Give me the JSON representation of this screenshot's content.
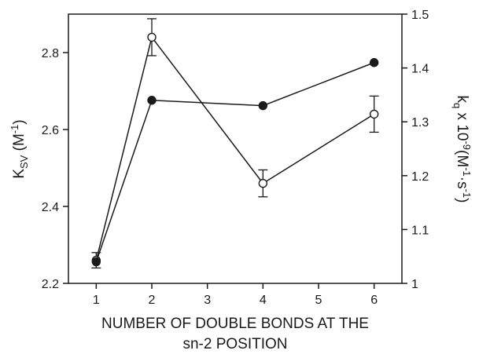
{
  "chart_data": {
    "type": "line",
    "title": "",
    "x": [
      1,
      2,
      4,
      6
    ],
    "xlim": [
      0.5,
      6.5
    ],
    "xticks": [
      "1",
      "2",
      "3",
      "4",
      "5",
      "6"
    ],
    "xlabel_line1": "NUMBER OF DOUBLE BONDS AT THE",
    "xlabel_line2": "sn-2 POSITION",
    "ylim_left": [
      2.2,
      2.9
    ],
    "yticks_left": [
      "2.2",
      "2.4",
      "2.6",
      "2.8"
    ],
    "ylabel_left": {
      "main": "K",
      "sub": "SV",
      "unit_open": " (M",
      "sup": "-1",
      "unit_close": ")"
    },
    "ylim_right": [
      1.0,
      1.5
    ],
    "yticks_right": [
      "1",
      "1.1",
      "1.2",
      "1.3",
      "1.4",
      "1.5"
    ],
    "ylabel_right": {
      "main": "k",
      "sub": "q",
      "mid": " x 10",
      "sup1": "-9",
      "mid2": "(M",
      "sup2": "-1",
      "mid3": "·s",
      "sup3": "-1",
      "close": ")"
    },
    "series": [
      {
        "marker": "open-circle",
        "axis": "left",
        "values": [
          2.26,
          2.84,
          2.46,
          2.64
        ],
        "errors": [
          0.02,
          0.048,
          0.035,
          0.047
        ]
      },
      {
        "marker": "filled-circle",
        "axis": "right",
        "values": [
          1.04,
          1.34,
          1.33,
          1.41
        ],
        "errors": [
          0,
          0,
          0,
          0
        ]
      }
    ],
    "grid": false
  }
}
